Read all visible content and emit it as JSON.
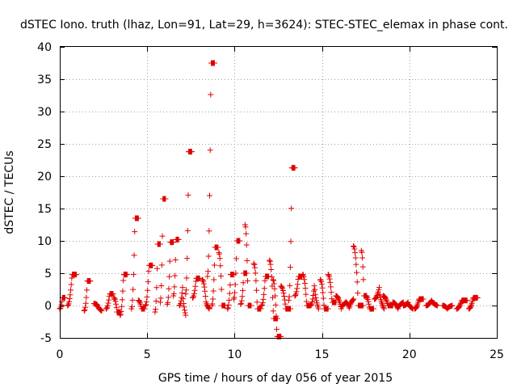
{
  "chart_data": {
    "type": "scatter",
    "title": "dSTEC Iono. truth (lhaz, Lon=91, Lat=29, h=3624): STEC-STEC_elemax in phase cont.",
    "xlabel": "GPS time / hours of day 056 of year 2015",
    "ylabel": "dSTEC  / TECUs",
    "xlim": [
      0,
      25
    ],
    "ylim": [
      -5,
      40
    ],
    "xticks": [
      0,
      5,
      10,
      15,
      20,
      25
    ],
    "yticks": [
      -5,
      0,
      5,
      10,
      15,
      20,
      25,
      30,
      35,
      40
    ],
    "grid": true,
    "legend": "none",
    "marker": "plus",
    "color": "#e00000",
    "arcs": [
      {
        "t0": 0.0,
        "t1": 0.3,
        "start": -0.5,
        "peak": 1.2,
        "end": 1.2
      },
      {
        "t0": 0.45,
        "t1": 0.95,
        "start": 0.0,
        "peak": 4.8,
        "end": 4.8
      },
      {
        "t0": 1.4,
        "t1": 1.75,
        "start": -0.8,
        "peak": 3.8,
        "end": 3.8
      },
      {
        "t0": 1.95,
        "t1": 2.4,
        "start": 0.3,
        "peak": 0.0,
        "end": -0.8
      },
      {
        "t0": 2.65,
        "t1": 3.05,
        "start": -0.5,
        "peak": 1.8,
        "end": 1.8
      },
      {
        "t0": 3.1,
        "t1": 3.45,
        "start": 1.2,
        "peak": -1.0,
        "end": -1.0
      },
      {
        "t0": 3.45,
        "t1": 3.85,
        "start": -1.5,
        "peak": 4.8,
        "end": 4.8
      },
      {
        "t0": 4.1,
        "t1": 4.5,
        "start": -0.5,
        "peak": 13.5,
        "end": 13.5
      },
      {
        "t0": 4.5,
        "t1": 4.85,
        "start": 0.8,
        "peak": -0.5,
        "end": -0.5
      },
      {
        "t0": 4.9,
        "t1": 5.3,
        "start": 0.0,
        "peak": 6.2,
        "end": 6.2
      },
      {
        "t0": 5.45,
        "t1": 5.75,
        "start": -1.0,
        "peak": 9.5,
        "end": 9.5
      },
      {
        "t0": 5.75,
        "t1": 6.05,
        "start": 0.5,
        "peak": 16.5,
        "end": 16.5
      },
      {
        "t0": 6.15,
        "t1": 6.5,
        "start": 0.2,
        "peak": 9.8,
        "end": 9.8
      },
      {
        "t0": 6.5,
        "t1": 6.8,
        "start": 1.5,
        "peak": 10.2,
        "end": 10.2
      },
      {
        "t0": 6.85,
        "t1": 7.2,
        "start": 0.0,
        "peak": 2.8,
        "end": -1.5
      },
      {
        "t0": 7.2,
        "t1": 7.55,
        "start": 1.8,
        "peak": 23.8,
        "end": 23.8
      },
      {
        "t0": 7.6,
        "t1": 8.0,
        "start": 1.2,
        "peak": 4.2,
        "end": 4.2
      },
      {
        "t0": 8.15,
        "t1": 8.55,
        "start": 4.0,
        "peak": 1.0,
        "end": -0.5
      },
      {
        "t0": 8.45,
        "t1": 8.85,
        "start": 4.5,
        "peak": 37.5,
        "end": 37.5
      },
      {
        "t0": 8.7,
        "t1": 9.05,
        "start": 0.0,
        "peak": 9.0,
        "end": 9.0
      },
      {
        "t0": 9.1,
        "t1": 9.45,
        "start": 8.2,
        "peak": 0.0,
        "end": 0.0
      },
      {
        "t0": 9.6,
        "t1": 9.95,
        "start": -0.5,
        "peak": 4.8,
        "end": 4.8
      },
      {
        "t0": 9.95,
        "t1": 10.3,
        "start": 1.0,
        "peak": 10.0,
        "end": 10.0
      },
      {
        "t0": 10.35,
        "t1": 10.7,
        "start": 0.2,
        "peak": 5.0,
        "end": 5.0
      },
      {
        "t0": 10.6,
        "t1": 10.95,
        "start": 12.5,
        "peak": 0.0,
        "end": 0.0
      },
      {
        "t0": 11.1,
        "t1": 11.5,
        "start": 6.5,
        "peak": -0.5,
        "end": -0.5
      },
      {
        "t0": 11.55,
        "t1": 11.95,
        "start": 0.0,
        "peak": 4.5,
        "end": 4.5
      },
      {
        "t0": 12.0,
        "t1": 12.45,
        "start": 7.0,
        "peak": -2.0,
        "end": -2.0
      },
      {
        "t0": 12.2,
        "t1": 12.65,
        "start": 4.0,
        "peak": -4.8,
        "end": -4.8
      },
      {
        "t0": 12.65,
        "t1": 13.2,
        "start": 3.0,
        "peak": -0.5,
        "end": -0.5
      },
      {
        "t0": 13.1,
        "t1": 13.45,
        "start": 0.8,
        "peak": 21.3,
        "end": 21.3
      },
      {
        "t0": 13.45,
        "t1": 13.85,
        "start": 1.5,
        "peak": 4.5,
        "end": 4.5
      },
      {
        "t0": 13.9,
        "t1": 14.35,
        "start": 4.8,
        "peak": 0.0,
        "end": 0.0
      },
      {
        "t0": 14.35,
        "t1": 14.8,
        "start": 0.0,
        "peak": 3.5,
        "end": -0.5
      },
      {
        "t0": 14.9,
        "t1": 15.35,
        "start": 4.0,
        "peak": -0.5,
        "end": -0.5
      },
      {
        "t0": 15.35,
        "t1": 15.8,
        "start": 4.8,
        "peak": 0.5,
        "end": 0.5
      },
      {
        "t0": 15.8,
        "t1": 16.4,
        "start": 1.5,
        "peak": -0.5,
        "end": 0.5
      },
      {
        "t0": 16.35,
        "t1": 16.8,
        "start": 0.5,
        "peak": -0.5,
        "end": 1.0
      },
      {
        "t0": 16.8,
        "t1": 17.35,
        "start": 9.2,
        "peak": 0.0,
        "end": 0.0
      },
      {
        "t0": 17.25,
        "t1": 17.55,
        "start": 8.5,
        "peak": 1.5,
        "end": 1.5
      },
      {
        "t0": 17.5,
        "t1": 17.95,
        "start": 1.5,
        "peak": -0.5,
        "end": -0.5
      },
      {
        "t0": 18.0,
        "t1": 18.55,
        "start": 1.0,
        "peak": 2.8,
        "end": -0.5
      },
      {
        "t0": 18.5,
        "t1": 19.05,
        "start": 1.5,
        "peak": 0.0,
        "end": 0.0
      },
      {
        "t0": 19.05,
        "t1": 19.65,
        "start": 0.5,
        "peak": -0.5,
        "end": 0.5
      },
      {
        "t0": 19.65,
        "t1": 20.2,
        "start": 0.0,
        "peak": 0.5,
        "end": -0.5
      },
      {
        "t0": 20.3,
        "t1": 20.8,
        "start": -0.5,
        "peak": 1.0,
        "end": 1.0
      },
      {
        "t0": 20.95,
        "t1": 21.6,
        "start": 0.0,
        "peak": 0.8,
        "end": 0.0
      },
      {
        "t0": 21.9,
        "t1": 22.45,
        "start": 0.0,
        "peak": -0.5,
        "end": 0.0
      },
      {
        "t0": 22.7,
        "t1": 23.3,
        "start": -0.5,
        "peak": 0.8,
        "end": 0.8
      },
      {
        "t0": 23.4,
        "t1": 23.9,
        "start": -0.5,
        "peak": 1.2,
        "end": 1.2
      }
    ]
  }
}
